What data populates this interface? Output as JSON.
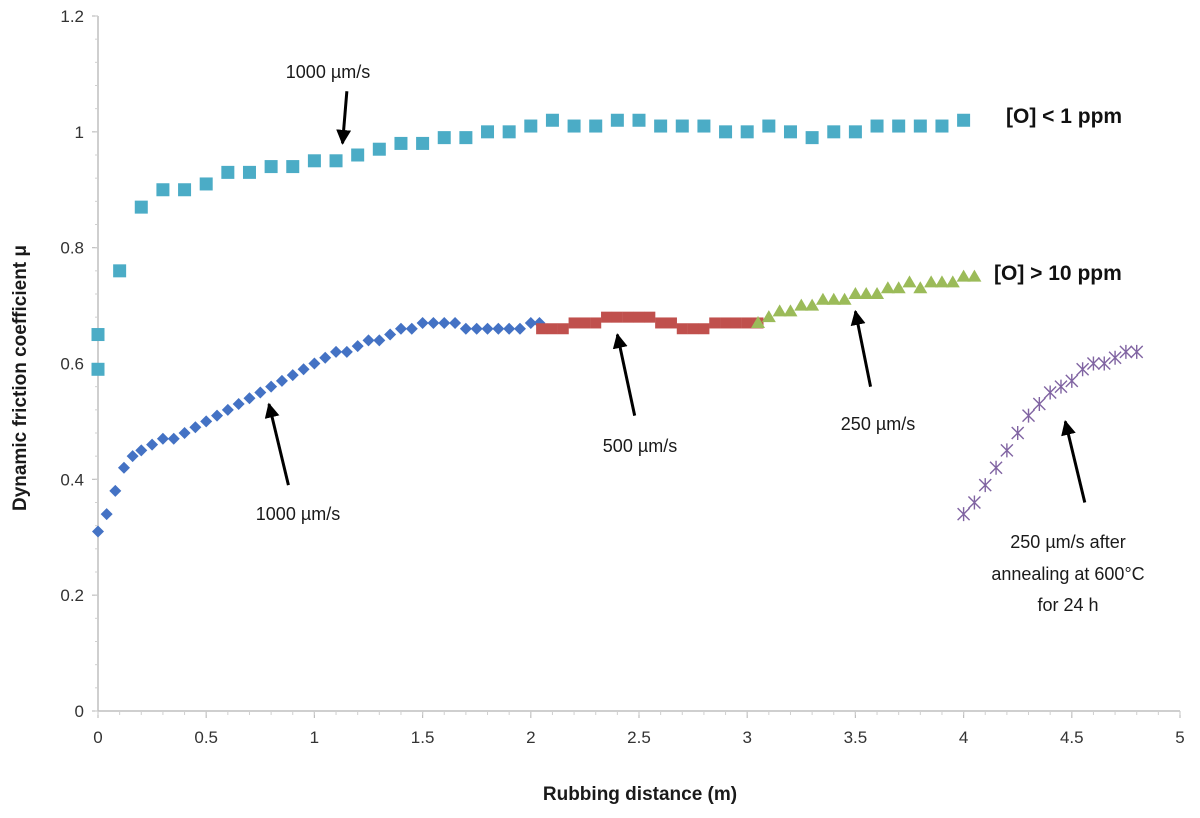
{
  "chart_data": {
    "type": "scatter",
    "title": "",
    "xlabel": "Rubbing distance (m)",
    "ylabel": "Dynamic friction coefficient μ",
    "xlim": [
      0,
      5
    ],
    "ylim": [
      0,
      1.2
    ],
    "x_ticks": [
      "0",
      "0.5",
      "1",
      "1.5",
      "2",
      "2.5",
      "3",
      "3.5",
      "4",
      "4.5",
      "5"
    ],
    "y_ticks": [
      "0",
      "0.2",
      "0.4",
      "0.6",
      "0.8",
      "1",
      "1.2"
    ],
    "grid": false,
    "series": [
      {
        "name": "[O] < 1 ppm, 1000 µm/s",
        "color": "#4bacc6",
        "marker": "square",
        "x": [
          0.0,
          0.0,
          0.1,
          0.2,
          0.3,
          0.4,
          0.5,
          0.6,
          0.7,
          0.8,
          0.9,
          1.0,
          1.1,
          1.2,
          1.3,
          1.4,
          1.5,
          1.6,
          1.7,
          1.8,
          1.9,
          2.0,
          2.1,
          2.2,
          2.3,
          2.4,
          2.5,
          2.6,
          2.7,
          2.8,
          2.9,
          3.0,
          3.1,
          3.2,
          3.3,
          3.4,
          3.5,
          3.6,
          3.7,
          3.8,
          3.9,
          4.0
        ],
        "y": [
          0.59,
          0.65,
          0.76,
          0.87,
          0.9,
          0.9,
          0.91,
          0.93,
          0.93,
          0.94,
          0.94,
          0.95,
          0.95,
          0.96,
          0.97,
          0.98,
          0.98,
          0.99,
          0.99,
          1.0,
          1.0,
          1.01,
          1.02,
          1.01,
          1.01,
          1.02,
          1.02,
          1.01,
          1.01,
          1.01,
          1.0,
          1.0,
          1.01,
          1.0,
          0.99,
          1.0,
          1.0,
          1.01,
          1.01,
          1.01,
          1.01,
          1.02
        ]
      },
      {
        "name": "[O] > 10 ppm, 1000 µm/s",
        "color": "#4472c4",
        "marker": "diamond",
        "x": [
          0.0,
          0.04,
          0.08,
          0.12,
          0.16,
          0.2,
          0.25,
          0.3,
          0.35,
          0.4,
          0.45,
          0.5,
          0.55,
          0.6,
          0.65,
          0.7,
          0.75,
          0.8,
          0.85,
          0.9,
          0.95,
          1.0,
          1.05,
          1.1,
          1.15,
          1.2,
          1.25,
          1.3,
          1.35,
          1.4,
          1.45,
          1.5,
          1.55,
          1.6,
          1.65,
          1.7,
          1.75,
          1.8,
          1.85,
          1.9,
          1.95,
          2.0,
          2.04
        ],
        "y": [
          0.31,
          0.34,
          0.38,
          0.42,
          0.44,
          0.45,
          0.46,
          0.47,
          0.47,
          0.48,
          0.49,
          0.5,
          0.51,
          0.52,
          0.53,
          0.54,
          0.55,
          0.56,
          0.57,
          0.58,
          0.59,
          0.6,
          0.61,
          0.62,
          0.62,
          0.63,
          0.64,
          0.64,
          0.65,
          0.66,
          0.66,
          0.67,
          0.67,
          0.67,
          0.67,
          0.66,
          0.66,
          0.66,
          0.66,
          0.66,
          0.66,
          0.67,
          0.67
        ]
      },
      {
        "name": "[O] > 10 ppm, 500 µm/s",
        "color": "#c0504d",
        "marker": "square",
        "x": [
          2.05,
          2.1,
          2.15,
          2.2,
          2.25,
          2.3,
          2.35,
          2.4,
          2.45,
          2.5,
          2.55,
          2.6,
          2.65,
          2.7,
          2.75,
          2.8,
          2.85,
          2.9,
          2.95,
          3.0,
          3.05
        ],
        "y": [
          0.66,
          0.66,
          0.66,
          0.67,
          0.67,
          0.67,
          0.68,
          0.68,
          0.68,
          0.68,
          0.68,
          0.67,
          0.67,
          0.66,
          0.66,
          0.66,
          0.67,
          0.67,
          0.67,
          0.67,
          0.67
        ]
      },
      {
        "name": "[O] > 10 ppm, 250 µm/s",
        "color": "#9bbb59",
        "marker": "triangle",
        "x": [
          3.05,
          3.1,
          3.15,
          3.2,
          3.25,
          3.3,
          3.35,
          3.4,
          3.45,
          3.5,
          3.55,
          3.6,
          3.65,
          3.7,
          3.75,
          3.8,
          3.85,
          3.9,
          3.95,
          4.0,
          4.05
        ],
        "y": [
          0.67,
          0.68,
          0.69,
          0.69,
          0.7,
          0.7,
          0.71,
          0.71,
          0.71,
          0.72,
          0.72,
          0.72,
          0.73,
          0.73,
          0.74,
          0.73,
          0.74,
          0.74,
          0.74,
          0.75,
          0.75
        ]
      },
      {
        "name": "250 µm/s after annealing at 600°C for 24 h",
        "color": "#8064a2",
        "marker": "star",
        "x": [
          4.0,
          4.05,
          4.1,
          4.15,
          4.2,
          4.25,
          4.3,
          4.35,
          4.4,
          4.45,
          4.5,
          4.55,
          4.6,
          4.65,
          4.7,
          4.75,
          4.8
        ],
        "y": [
          0.34,
          0.36,
          0.39,
          0.42,
          0.45,
          0.48,
          0.51,
          0.53,
          0.55,
          0.56,
          0.57,
          0.59,
          0.6,
          0.6,
          0.61,
          0.62,
          0.62
        ]
      }
    ],
    "annotations": [
      {
        "id": "a1000_top",
        "text": "1000 µm/s",
        "tail": [
          1.15,
          1.07
        ],
        "head": [
          1.13,
          0.98
        ]
      },
      {
        "id": "a1000_bottom",
        "text": "1000 µm/s",
        "tail": [
          0.88,
          0.39
        ],
        "head": [
          0.79,
          0.53
        ]
      },
      {
        "id": "a500",
        "text": "500 µm/s",
        "tail": [
          2.48,
          0.51
        ],
        "head": [
          2.4,
          0.65
        ]
      },
      {
        "id": "a250",
        "text": "250 µm/s",
        "tail": [
          3.57,
          0.56
        ],
        "head": [
          3.5,
          0.69
        ]
      },
      {
        "id": "a250_anneal",
        "text": "250 µm/s after annealing at 600°C for 24 h",
        "tail": [
          4.56,
          0.36
        ],
        "head": [
          4.47,
          0.5
        ]
      }
    ],
    "labels": {
      "low_oxygen": "[O] < 1 ppm",
      "high_oxygen": "[O] > 10 ppm"
    },
    "text": {
      "a1000_top": "1000 µm/s",
      "a1000_bottom": "1000 µm/s",
      "a500": "500 µm/s",
      "a250": "250 µm/s",
      "anneal_line1": "250 µm/s after",
      "anneal_line2": "annealing at 600°C",
      "anneal_line3": "for 24 h"
    }
  }
}
